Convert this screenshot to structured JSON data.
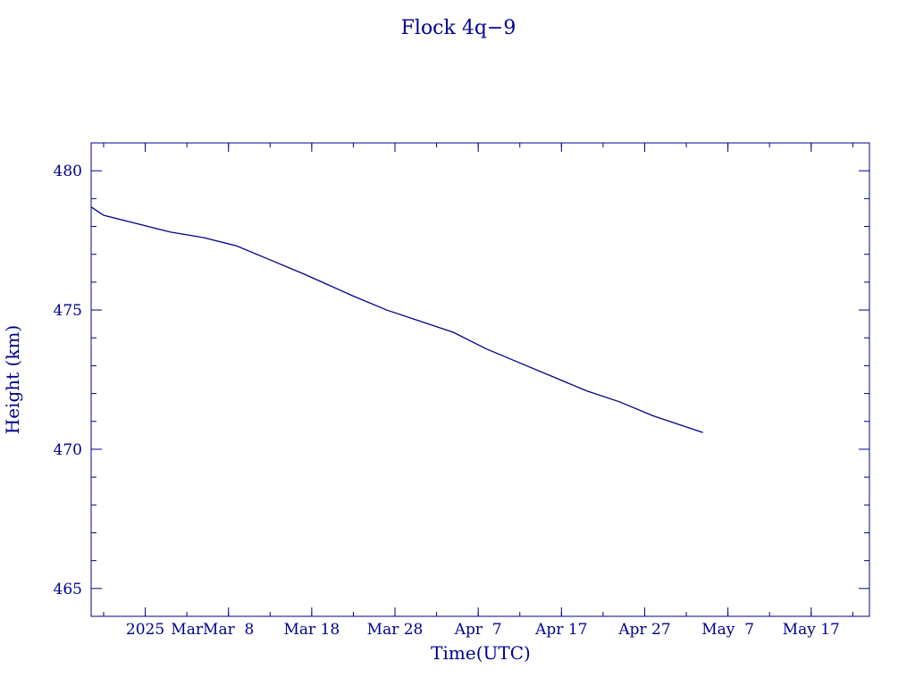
{
  "chart_data": {
    "type": "line",
    "title": "Flock 4q−9",
    "xlabel": "Time(UTC)",
    "ylabel": "Height (km)",
    "xlim": [
      "2025-02-19 12:00",
      "2025-05-24"
    ],
    "ylim": [
      464,
      481
    ],
    "x_ticks": [
      {
        "date": "2025-02-26",
        "label": "2025"
      },
      {
        "date": "2025-03-08",
        "label": "Mar  8"
      },
      {
        "date": "2025-03-18",
        "label": "Mar 18"
      },
      {
        "date": "2025-03-28",
        "label": "Mar 28"
      },
      {
        "date": "2025-04-07",
        "label": "Apr  7"
      },
      {
        "date": "2025-04-17",
        "label": "Apr 17"
      },
      {
        "date": "2025-04-27",
        "label": "Apr 27"
      },
      {
        "date": "2025-05-07",
        "label": "May  7"
      },
      {
        "date": "2025-05-17",
        "label": "May 17"
      }
    ],
    "x_tick_extra_labels": [
      {
        "date": "2025-03-03",
        "label": "Mar"
      }
    ],
    "y_ticks": [
      465,
      470,
      475,
      480
    ],
    "y_minor_step": 1,
    "grid": false,
    "series": [
      {
        "x": [
          "2025-02-19 12:00",
          "2025-02-21",
          "2025-02-25",
          "2025-03-01",
          "2025-03-05",
          "2025-03-09",
          "2025-03-13",
          "2025-03-17",
          "2025-03-20",
          "2025-03-23",
          "2025-03-27",
          "2025-03-31",
          "2025-04-04",
          "2025-04-08",
          "2025-04-12",
          "2025-04-16",
          "2025-04-20",
          "2025-04-24",
          "2025-04-28",
          "2025-05-02",
          "2025-05-04"
        ],
        "y": [
          478.7,
          478.4,
          478.1,
          477.8,
          477.6,
          477.3,
          476.8,
          476.3,
          475.9,
          475.5,
          475.0,
          474.6,
          474.2,
          473.6,
          473.1,
          472.6,
          472.1,
          471.7,
          471.2,
          470.8,
          470.6
        ]
      }
    ]
  }
}
